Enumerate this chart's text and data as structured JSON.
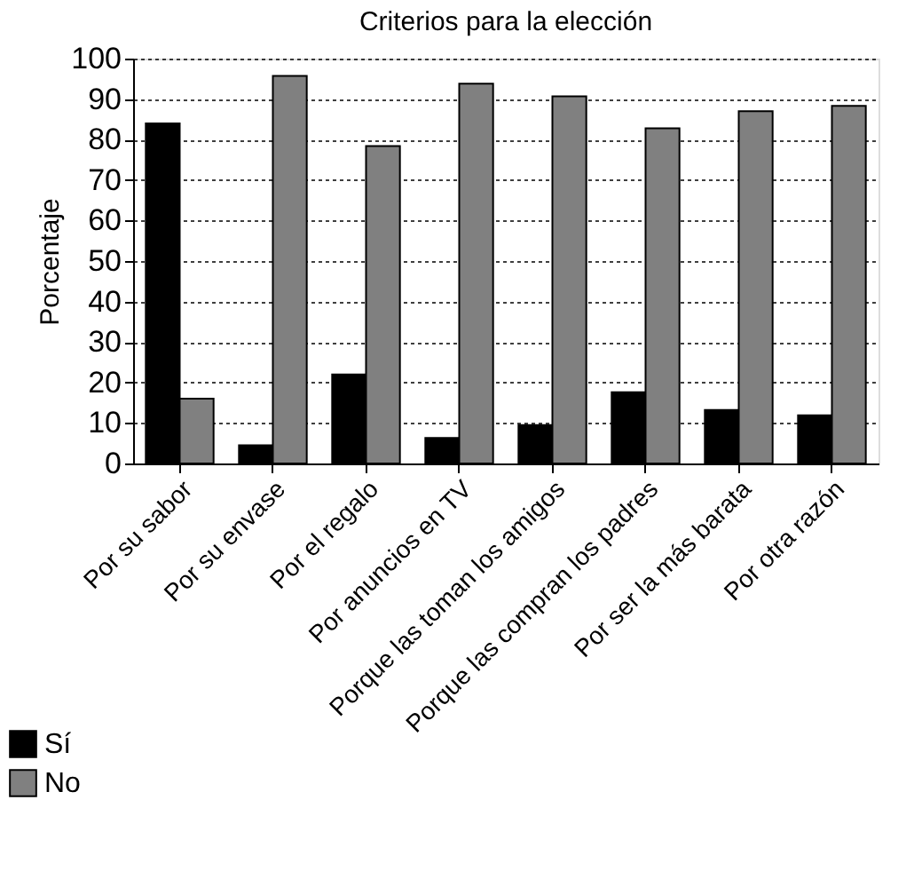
{
  "chart_data": {
    "type": "bar",
    "title": "Criterios para la elección",
    "ylabel": "Porcentaje",
    "categories": [
      "Por su sabor",
      "Por su envase",
      "Por el regalo",
      "Por anuncios en TV",
      "Porque las toman los amigos",
      "Porque las compran los padres",
      "Por ser la más barata",
      "Por otra razón"
    ],
    "series": [
      {
        "name": "Sí",
        "color": "#000000",
        "values": [
          84,
          4.5,
          22,
          6.3,
          9.5,
          17.6,
          13.2,
          11.9
        ]
      },
      {
        "name": "No",
        "color": "#808080",
        "values": [
          16,
          95.7,
          78.4,
          93.8,
          90.7,
          82.8,
          87,
          88.3
        ]
      }
    ],
    "ylim": [
      0,
      100
    ],
    "yticks": [
      0,
      10,
      20,
      30,
      40,
      50,
      60,
      70,
      80,
      90,
      100
    ],
    "grid": "y",
    "legend": "bottom left"
  }
}
